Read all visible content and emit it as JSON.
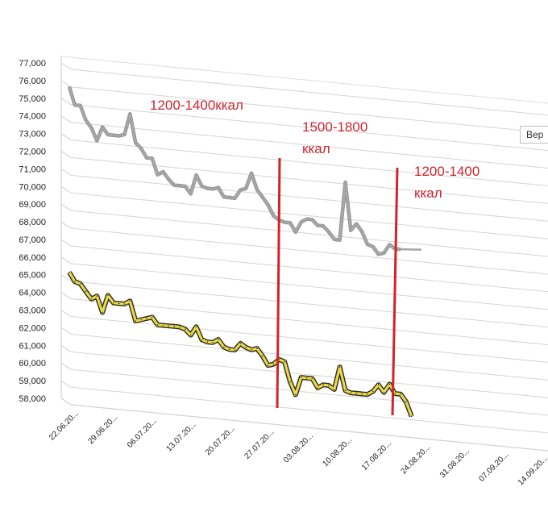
{
  "chart_data": {
    "type": "line",
    "ylim": [
      58000,
      77000
    ],
    "y_ticks": [
      "58,000",
      "59,000",
      "60,000",
      "61,000",
      "62,000",
      "63,000",
      "64,000",
      "65,000",
      "66,000",
      "67,000",
      "68,000",
      "69,000",
      "70,000",
      "71,000",
      "72,000",
      "73,000",
      "74,000",
      "75,000",
      "76,000",
      "77,000"
    ],
    "x_ticks": [
      "22.06.20...",
      "29.06.20...",
      "06.07.20...",
      "13.07.20...",
      "20.07.20...",
      "27.07.20...",
      "03.08.20...",
      "10.08.20...",
      "17.08.20...",
      "24.08.20...",
      "31.08.20...",
      "07.09.20...",
      "14.09.20..."
    ],
    "series": [
      {
        "color": "#a6a6a6",
        "values": [
          76.0,
          75.0,
          75.0,
          74.2,
          73.8,
          73.1,
          73.9,
          73.5,
          73.5,
          73.5,
          73.6,
          74.8,
          73.2,
          72.9,
          72.4,
          72.4,
          71.5,
          71.7,
          71.3,
          71.0,
          71.0,
          71.0,
          70.6,
          71.7,
          71.1,
          71.0,
          71.0,
          71.1,
          70.6,
          70.6,
          70.6,
          71.1,
          71.2,
          72.1,
          71.2,
          70.8,
          70.4,
          69.8,
          69.6,
          69.5,
          69.5,
          69.0,
          69.6,
          69.8,
          69.8,
          69.5,
          69.5,
          69.2,
          68.8,
          68.8,
          72.1,
          69.4,
          69.8,
          69.4,
          68.7,
          68.6,
          68.2,
          68.3,
          68.8,
          68.6,
          68.6
        ]
      },
      {
        "color": "#e8d84a",
        "values": [
          65.5,
          65.0,
          64.9,
          64.5,
          64.1,
          64.3,
          63.4,
          64.4,
          64.0,
          64.0,
          64.0,
          64.2,
          63.1,
          63.2,
          63.3,
          63.4,
          63.0,
          63.0,
          63.0,
          63.0,
          63.0,
          62.9,
          62.6,
          63.1,
          62.4,
          62.3,
          62.3,
          62.5,
          62.1,
          62.0,
          62.0,
          62.4,
          62.2,
          62.1,
          62.2,
          61.8,
          61.3,
          61.4,
          61.7,
          61.6,
          60.5,
          59.8,
          60.8,
          60.8,
          60.8,
          60.3,
          60.5,
          60.5,
          60.3,
          61.6,
          60.3,
          60.2,
          60.2,
          60.2,
          60.2,
          60.4,
          60.8,
          60.4,
          60.9,
          60.4,
          60.4,
          60.0,
          59.2
        ]
      }
    ],
    "annotations": [
      {
        "text": "1200-1400ккал"
      },
      {
        "text": "1500-1800",
        "text2": "ккал"
      },
      {
        "text": "1200-1400",
        "text2": "ккал"
      }
    ],
    "legend_text": "Вер"
  }
}
